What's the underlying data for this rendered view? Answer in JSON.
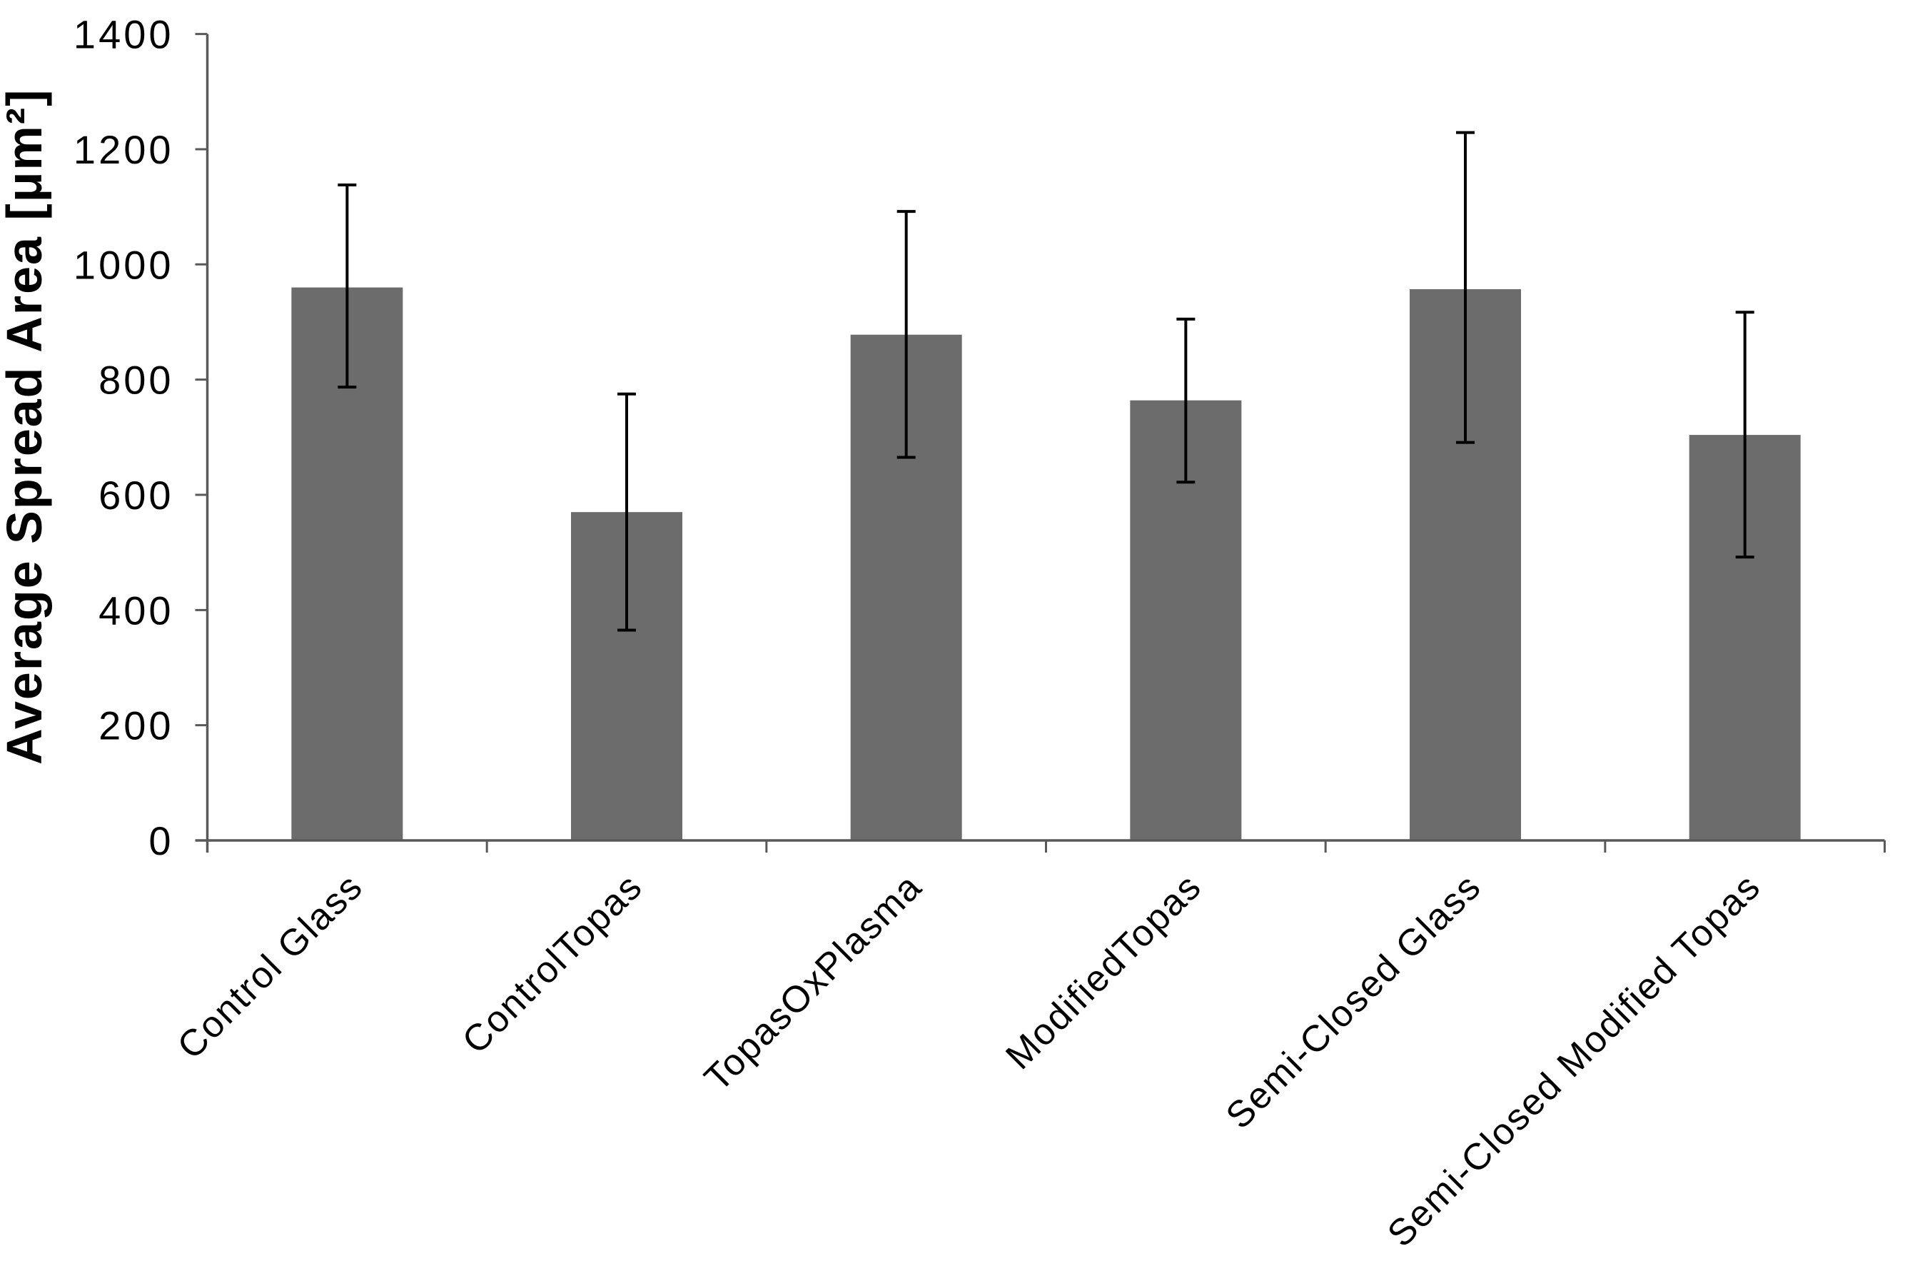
{
  "chart_data": {
    "type": "bar",
    "title": "",
    "ylabel": "Average Spread Area [μm²]",
    "xlabel": "",
    "ylim": [
      0,
      1400
    ],
    "ytick_interval": 200,
    "yticks": [
      0,
      200,
      400,
      600,
      800,
      1000,
      1200,
      1400
    ],
    "categories": [
      "Control Glass",
      "ControlTopas",
      "TopasOxPlasma",
      "ModifiedTopas",
      "Semi-Closed Glass",
      "Semi-Closed Modified Topas"
    ],
    "series": [
      {
        "name": "Average Spread Area",
        "values": [
          960,
          570,
          878,
          764,
          957,
          704
        ],
        "error_up": [
          178,
          205,
          214,
          141,
          272,
          213
        ],
        "error_down": [
          173,
          205,
          213,
          142,
          266,
          212
        ]
      }
    ],
    "grid": false,
    "legend": false,
    "x_label_rotation_deg": 45,
    "colors": {
      "bar_fill": "#6C6C6C",
      "error_bar": "#000000",
      "axis_line": "#595959",
      "tick_label": "#000000",
      "background": "#FFFFFF"
    }
  }
}
